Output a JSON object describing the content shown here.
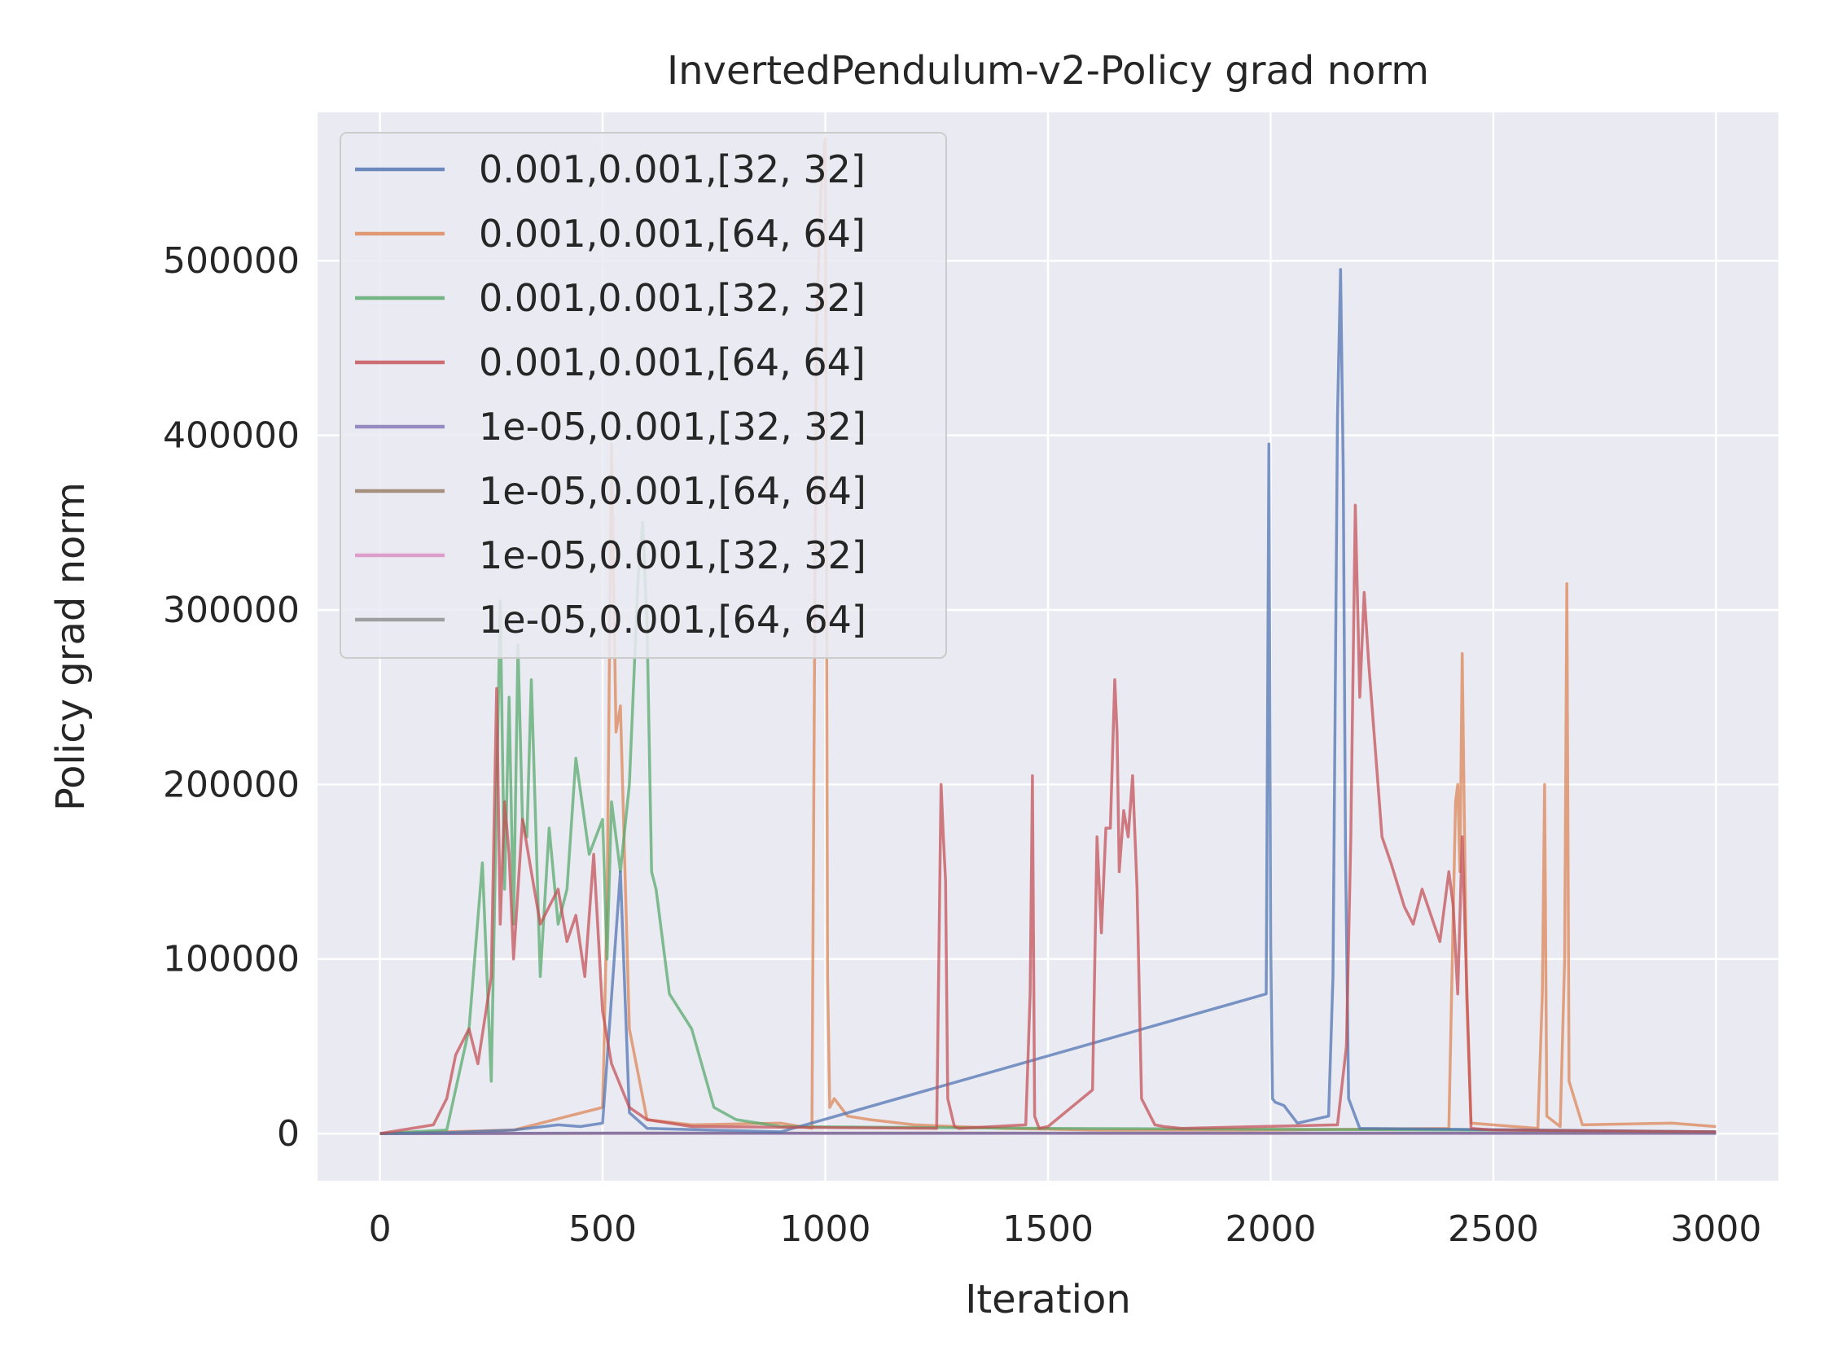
{
  "chart_data": {
    "type": "line",
    "title": "InvertedPendulum-v2-Policy grad norm",
    "xlabel": "Iteration",
    "ylabel": "Policy grad norm",
    "xlim": [
      -140,
      3140
    ],
    "ylim": [
      -27000,
      585000
    ],
    "xticks": [
      0,
      500,
      1000,
      1500,
      2000,
      2500,
      3000
    ],
    "xtick_labels": [
      "0",
      "500",
      "1000",
      "1500",
      "2000",
      "2500",
      "3000"
    ],
    "yticks": [
      0,
      100000,
      200000,
      300000,
      400000,
      500000
    ],
    "ytick_labels": [
      "0",
      "100000",
      "200000",
      "300000",
      "400000",
      "500000"
    ],
    "grid": true,
    "legend_position": "top-left",
    "series": [
      {
        "name": "0.001,0.001,[32, 32]",
        "color": "#4c72b0",
        "x": [
          0,
          150,
          300,
          400,
          450,
          500,
          540,
          560,
          600,
          900,
          1990,
          1996,
          2000,
          2004,
          2010,
          2030,
          2060,
          2130,
          2140,
          2150,
          2157,
          2163,
          2168,
          2175,
          2200,
          3000
        ],
        "y": [
          0,
          500,
          2000,
          5000,
          4000,
          6000,
          150000,
          12000,
          3000,
          1000,
          80000,
          395000,
          110000,
          20000,
          18000,
          16000,
          6000,
          10000,
          90000,
          410000,
          495000,
          380000,
          160000,
          20000,
          3000,
          1000
        ]
      },
      {
        "name": "0.001,0.001,[64, 64]",
        "color": "#dd8452",
        "x": [
          0,
          300,
          500,
          510,
          520,
          530,
          540,
          560,
          600,
          700,
          900,
          970,
          980,
          990,
          1000,
          1005,
          1010,
          1020,
          1050,
          1100,
          1200,
          1400,
          1600,
          2000,
          2400,
          2415,
          2420,
          2425,
          2430,
          2440,
          2450,
          2600,
          2610,
          2615,
          2620,
          2650,
          2660,
          2665,
          2670,
          2700,
          2900,
          3000
        ],
        "y": [
          0,
          2000,
          15000,
          130000,
          395000,
          230000,
          245000,
          60000,
          8000,
          5000,
          6000,
          3000,
          460000,
          540000,
          570000,
          90000,
          15000,
          20000,
          10000,
          8000,
          5000,
          3000,
          2000,
          2000,
          3000,
          190000,
          200000,
          150000,
          275000,
          80000,
          6000,
          3000,
          80000,
          200000,
          10000,
          4000,
          100000,
          315000,
          30000,
          5000,
          6000,
          4000
        ]
      },
      {
        "name": "0.001,0.001,[32, 32]",
        "color": "#55a868",
        "x": [
          0,
          150,
          200,
          230,
          250,
          270,
          280,
          290,
          300,
          310,
          320,
          330,
          340,
          360,
          380,
          400,
          420,
          440,
          470,
          500,
          510,
          520,
          540,
          560,
          580,
          590,
          600,
          610,
          620,
          650,
          700,
          750,
          800,
          900,
          1500,
          2500,
          3000
        ],
        "y": [
          0,
          2000,
          60000,
          155000,
          30000,
          305000,
          140000,
          250000,
          120000,
          280000,
          180000,
          170000,
          260000,
          90000,
          175000,
          120000,
          140000,
          215000,
          160000,
          180000,
          100000,
          190000,
          150000,
          200000,
          320000,
          350000,
          290000,
          150000,
          140000,
          80000,
          60000,
          15000,
          8000,
          4000,
          3000,
          2000,
          1000
        ]
      },
      {
        "name": "0.001,0.001,[64, 64]",
        "color": "#c44e52",
        "x": [
          0,
          120,
          150,
          170,
          200,
          220,
          250,
          262,
          270,
          280,
          290,
          300,
          320,
          340,
          360,
          380,
          400,
          420,
          440,
          460,
          480,
          500,
          520,
          560,
          600,
          700,
          1250,
          1260,
          1265,
          1270,
          1275,
          1290,
          1300,
          1450,
          1460,
          1465,
          1470,
          1480,
          1500,
          1600,
          1610,
          1620,
          1630,
          1640,
          1650,
          1655,
          1660,
          1670,
          1680,
          1690,
          1700,
          1710,
          1740,
          1760,
          1800,
          2150,
          2170,
          2180,
          2190,
          2200,
          2210,
          2220,
          2250,
          2270,
          2300,
          2320,
          2340,
          2380,
          2400,
          2410,
          2420,
          2430,
          2450,
          2500,
          3000
        ],
        "y": [
          0,
          5000,
          20000,
          45000,
          60000,
          40000,
          90000,
          255000,
          120000,
          190000,
          160000,
          100000,
          180000,
          150000,
          120000,
          130000,
          140000,
          110000,
          125000,
          90000,
          160000,
          70000,
          40000,
          15000,
          8000,
          4000,
          3000,
          200000,
          170000,
          145000,
          20000,
          4000,
          3000,
          5000,
          80000,
          205000,
          10000,
          3000,
          4000,
          25000,
          170000,
          115000,
          175000,
          175000,
          260000,
          230000,
          150000,
          185000,
          170000,
          205000,
          140000,
          20000,
          5000,
          4000,
          3000,
          5000,
          50000,
          170000,
          360000,
          250000,
          310000,
          270000,
          170000,
          155000,
          130000,
          120000,
          140000,
          110000,
          150000,
          130000,
          80000,
          170000,
          3000,
          2000,
          1000
        ]
      },
      {
        "name": "1e-05,0.001,[32, 32]",
        "color": "#8172b3",
        "x": [
          0,
          500,
          1000,
          2000,
          3000
        ],
        "y": [
          0,
          300,
          200,
          300,
          200
        ]
      },
      {
        "name": "1e-05,0.001,[64, 64]",
        "color": "#937860",
        "x": [
          0,
          500,
          1000,
          2000,
          3000
        ],
        "y": [
          0,
          200,
          300,
          200,
          300
        ]
      },
      {
        "name": "1e-05,0.001,[32, 32]",
        "color": "#da8bc3",
        "x": [
          0,
          500,
          1000,
          2000,
          3000
        ],
        "y": [
          0,
          100,
          200,
          100,
          200
        ]
      },
      {
        "name": "1e-05,0.001,[64, 64]",
        "color": "#8c8c8c",
        "x": [
          0,
          500,
          1000,
          2000,
          3000
        ],
        "y": [
          0,
          200,
          100,
          200,
          100
        ]
      }
    ]
  }
}
